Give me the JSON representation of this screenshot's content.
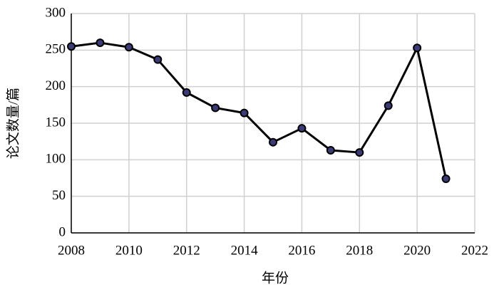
{
  "chart_data": {
    "type": "line",
    "x_label": "年份",
    "y_label": "论文数量/篇",
    "x": [
      2008,
      2009,
      2010,
      2011,
      2012,
      2013,
      2014,
      2015,
      2016,
      2017,
      2018,
      2019,
      2020,
      2021
    ],
    "values": [
      255,
      260,
      254,
      237,
      192,
      171,
      164,
      124,
      143,
      113,
      110,
      174,
      253,
      74
    ],
    "color": "#000000",
    "marker_color": "#3b3b78",
    "xlim": [
      2008,
      2022
    ],
    "xticks": [
      2008,
      2010,
      2012,
      2014,
      2016,
      2018,
      2020,
      2022
    ],
    "ylim": [
      0,
      300
    ],
    "yticks": [
      0,
      50,
      100,
      150,
      200,
      250,
      300
    ],
    "grid": true
  }
}
